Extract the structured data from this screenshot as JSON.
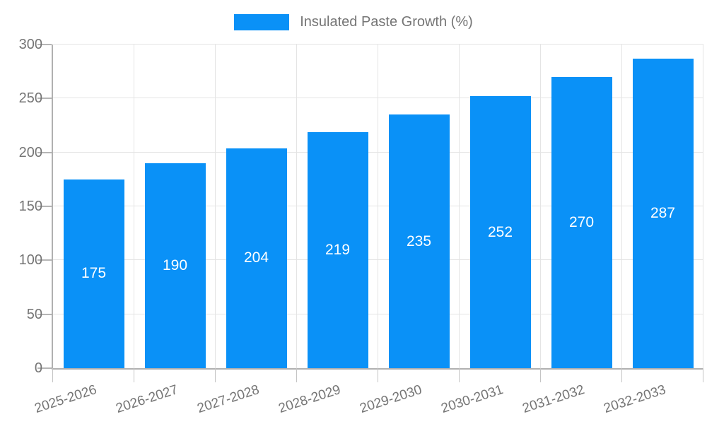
{
  "legend": {
    "label": "Insulated Paste Growth (%)"
  },
  "colors": {
    "bar": "#0a91f7",
    "grid": "#e4e4e4",
    "axis": "#b0b0b0",
    "axis_text": "#757575",
    "value_text": "#ffffff",
    "background": "#ffffff"
  },
  "chart_data": {
    "type": "bar",
    "title": "",
    "xlabel": "",
    "ylabel": "",
    "categories": [
      "2025-2026",
      "2026-2027",
      "2027-2028",
      "2028-2029",
      "2029-2030",
      "2030-2031",
      "2031-2032",
      "2032-2033"
    ],
    "series": [
      {
        "name": "Insulated Paste Growth (%)",
        "color": "#0a91f7",
        "values": [
          175,
          190,
          204,
          219,
          235,
          252,
          270,
          287
        ]
      }
    ],
    "bar_value_labels": [
      175,
      190,
      204,
      219,
      235,
      252,
      270,
      287
    ],
    "ylim": [
      0,
      300
    ],
    "yticks": [
      0,
      50,
      100,
      150,
      200,
      250,
      300
    ],
    "grid": true,
    "legend_position": "top-center",
    "x_label_rotation_deg": -18
  }
}
